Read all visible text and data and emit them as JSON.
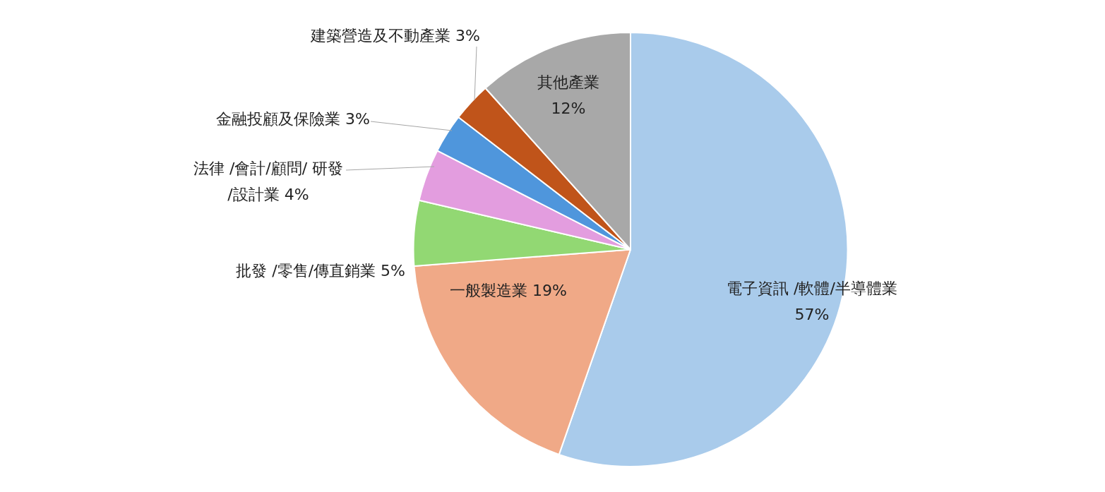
{
  "chart_data": {
    "type": "pie",
    "categories": [
      "電子資訊 /軟體/半導體業",
      "一般製造業",
      "批發 /零售/傳直銷業",
      "法律 /會計/顧問/ 研發/設計業",
      "金融投顧及保險業",
      "建築營造及不動產業",
      "其他產業"
    ],
    "values": [
      57,
      19,
      5,
      4,
      3,
      3,
      12
    ],
    "value_labels": [
      "57%",
      "19%",
      "5%",
      "4%",
      "3%",
      "3%",
      "12%"
    ],
    "colors": [
      "#a9cbeb",
      "#f0a987",
      "#92d873",
      "#e39ddf",
      "#4f96dc",
      "#c0541a",
      "#a8a8a8"
    ],
    "legend": false
  }
}
